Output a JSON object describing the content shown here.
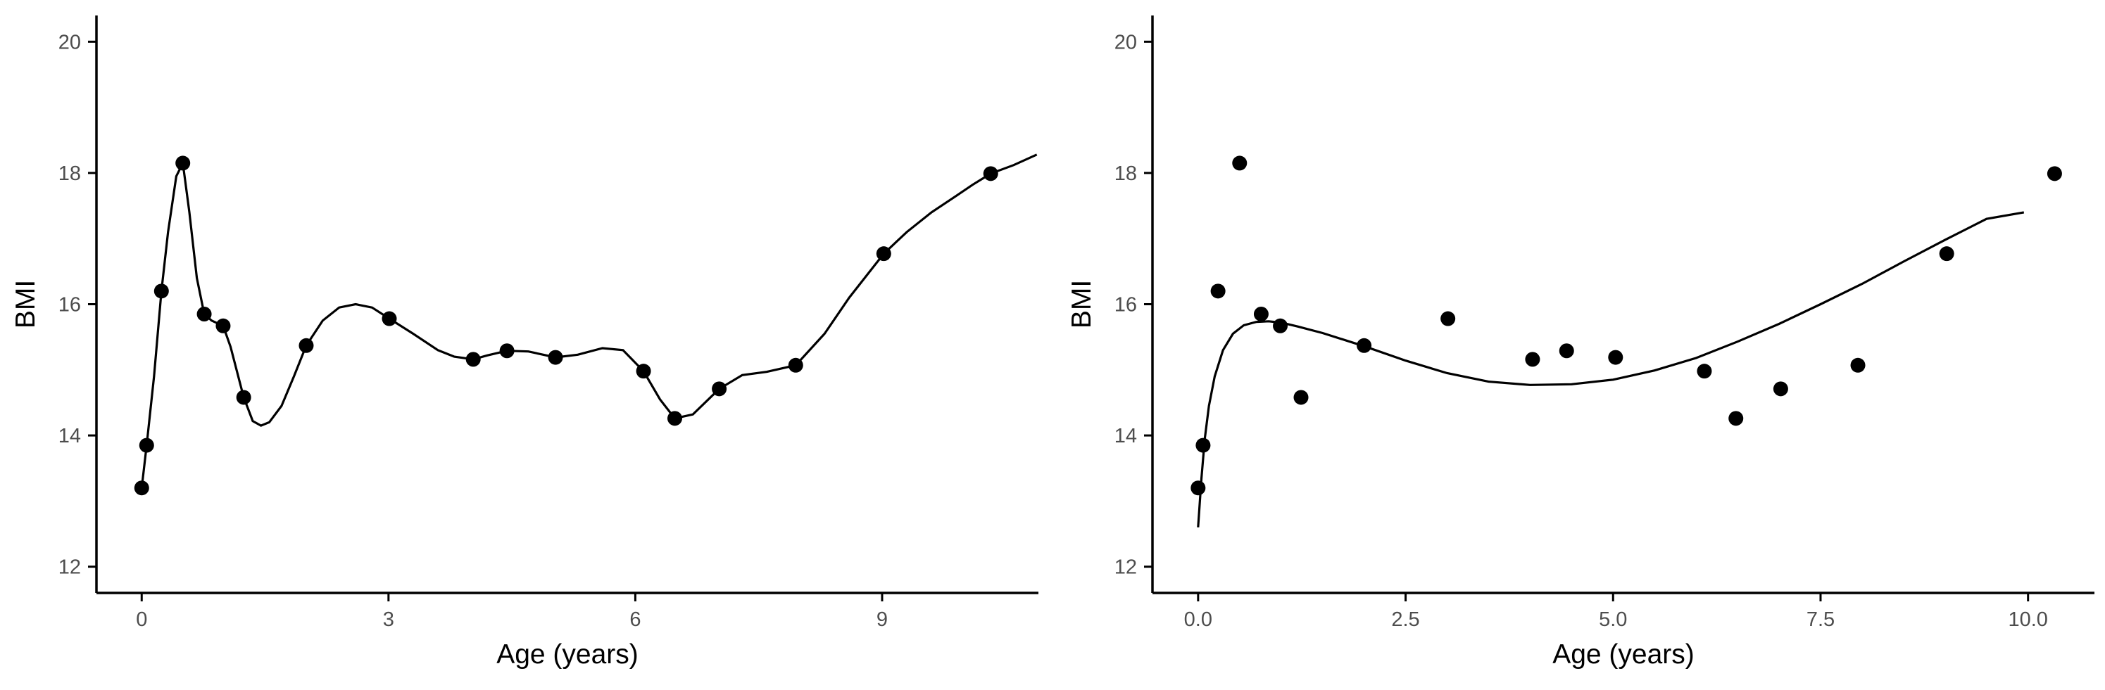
{
  "chart_data": [
    {
      "type": "scatter",
      "title": "",
      "xlabel": "Age (years)",
      "ylabel": "BMI",
      "xlim": [
        -0.55,
        10.9
      ],
      "ylim": [
        11.6,
        20.4
      ],
      "xticks": [
        0,
        3,
        6,
        9
      ],
      "xtick_labels": [
        "0",
        "3",
        "6",
        "9"
      ],
      "yticks": [
        12,
        14,
        16,
        18,
        20
      ],
      "ytick_labels": [
        "12",
        "14",
        "16",
        "18",
        "20"
      ],
      "grid": false,
      "legend": "none",
      "points": {
        "x": [
          0.0,
          0.06,
          0.24,
          0.5,
          0.76,
          0.99,
          1.24,
          2.0,
          3.01,
          4.03,
          4.44,
          5.03,
          6.1,
          6.48,
          7.02,
          7.95,
          9.02,
          10.32
        ],
        "y": [
          13.2,
          13.85,
          16.2,
          18.15,
          15.85,
          15.67,
          14.58,
          15.37,
          15.78,
          15.16,
          15.29,
          15.19,
          14.98,
          14.26,
          14.71,
          15.07,
          16.77,
          17.99
        ]
      },
      "series": [
        {
          "type": "line",
          "x": [
            0.0,
            0.06,
            0.15,
            0.24,
            0.32,
            0.42,
            0.5,
            0.58,
            0.67,
            0.76,
            0.85,
            0.99,
            1.08,
            1.24,
            1.35,
            1.45,
            1.55,
            1.7,
            1.85,
            2.0,
            2.2,
            2.4,
            2.6,
            2.8,
            3.01,
            3.3,
            3.6,
            3.8,
            4.03,
            4.2,
            4.44,
            4.7,
            5.03,
            5.3,
            5.6,
            5.85,
            6.1,
            6.3,
            6.48,
            6.7,
            7.02,
            7.3,
            7.6,
            7.95,
            8.3,
            8.6,
            9.02,
            9.3,
            9.6,
            9.9,
            10.1,
            10.32,
            10.6,
            10.88
          ],
          "y": [
            13.2,
            13.85,
            14.9,
            16.2,
            17.1,
            17.95,
            18.15,
            17.4,
            16.4,
            15.85,
            15.75,
            15.67,
            15.35,
            14.58,
            14.22,
            14.15,
            14.2,
            14.45,
            14.9,
            15.37,
            15.75,
            15.95,
            16.0,
            15.95,
            15.78,
            15.55,
            15.3,
            15.2,
            15.16,
            15.22,
            15.29,
            15.28,
            15.19,
            15.23,
            15.33,
            15.3,
            14.98,
            14.55,
            14.26,
            14.32,
            14.71,
            14.92,
            14.97,
            15.07,
            15.55,
            16.1,
            16.77,
            17.1,
            17.4,
            17.65,
            17.82,
            17.99,
            18.12,
            18.28
          ]
        }
      ]
    },
    {
      "type": "scatter",
      "title": "",
      "xlabel": "Age (years)",
      "ylabel": "BMI",
      "xlim": [
        -0.55,
        10.8
      ],
      "ylim": [
        11.6,
        20.4
      ],
      "xticks": [
        0,
        2.5,
        5,
        7.5,
        10
      ],
      "xtick_labels": [
        "0.0",
        "2.5",
        "5.0",
        "7.5",
        "10.0"
      ],
      "yticks": [
        12,
        14,
        16,
        18,
        20
      ],
      "ytick_labels": [
        "12",
        "14",
        "16",
        "18",
        "20"
      ],
      "grid": false,
      "legend": "none",
      "points": {
        "x": [
          0.0,
          0.06,
          0.24,
          0.5,
          0.76,
          0.99,
          1.24,
          2.0,
          3.01,
          4.03,
          4.44,
          5.03,
          6.1,
          6.48,
          7.02,
          7.95,
          9.02,
          10.32
        ],
        "y": [
          13.2,
          13.85,
          16.2,
          18.15,
          15.85,
          15.67,
          14.58,
          15.37,
          15.78,
          15.16,
          15.29,
          15.19,
          14.98,
          14.26,
          14.71,
          15.07,
          16.77,
          17.99
        ]
      },
      "series": [
        {
          "type": "line",
          "x": [
            0.0,
            0.04,
            0.08,
            0.13,
            0.2,
            0.3,
            0.42,
            0.55,
            0.7,
            0.85,
            1.0,
            1.2,
            1.5,
            1.8,
            2.0,
            2.5,
            3.0,
            3.5,
            4.0,
            4.5,
            5.0,
            5.5,
            6.0,
            6.5,
            7.0,
            7.5,
            8.0,
            8.5,
            9.0,
            9.5,
            9.95
          ],
          "y": [
            12.6,
            13.35,
            13.95,
            14.45,
            14.9,
            15.3,
            15.55,
            15.68,
            15.73,
            15.74,
            15.72,
            15.66,
            15.56,
            15.44,
            15.36,
            15.14,
            14.95,
            14.82,
            14.77,
            14.78,
            14.85,
            14.99,
            15.18,
            15.43,
            15.7,
            16.0,
            16.31,
            16.65,
            16.98,
            17.3,
            17.4
          ]
        }
      ]
    }
  ]
}
